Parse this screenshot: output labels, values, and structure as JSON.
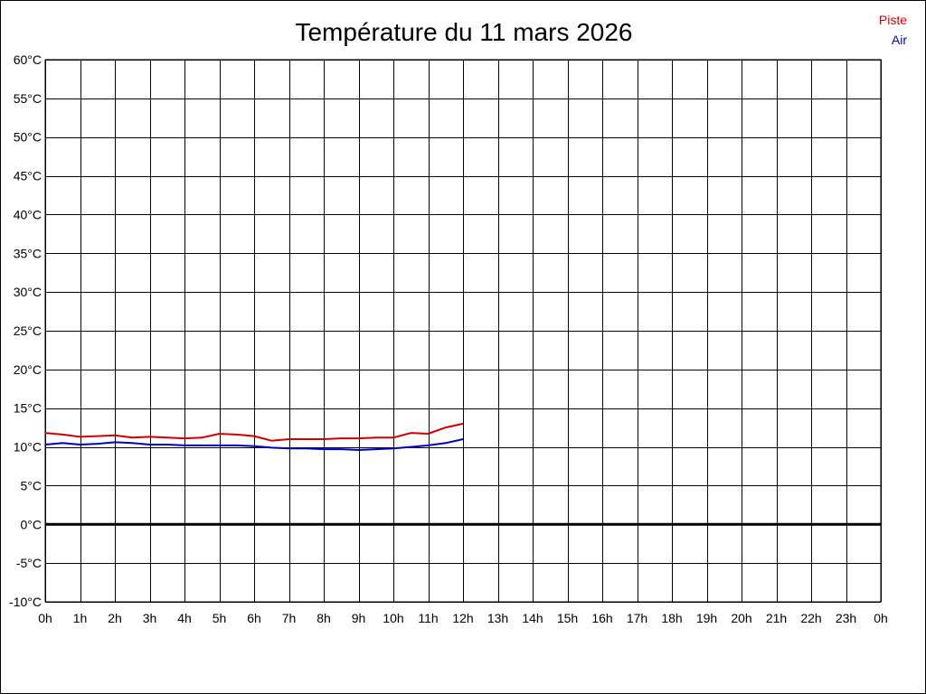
{
  "chart_data": {
    "type": "line",
    "title": "Température du 11 mars 2026",
    "xlabel": "",
    "ylabel": "",
    "ylim": [
      -10,
      60
    ],
    "y_ticks": [
      -10,
      -5,
      0,
      5,
      10,
      15,
      20,
      25,
      30,
      35,
      40,
      45,
      50,
      55,
      60
    ],
    "y_tick_labels": [
      "-10°C",
      "-5°C",
      "0°C",
      "5°C",
      "10°C",
      "15°C",
      "20°C",
      "25°C",
      "30°C",
      "35°C",
      "40°C",
      "45°C",
      "50°C",
      "55°C",
      "60°C"
    ],
    "xlim": [
      0,
      24
    ],
    "x_tick_labels": [
      "0h",
      "1h",
      "2h",
      "3h",
      "4h",
      "5h",
      "6h",
      "7h",
      "8h",
      "9h",
      "10h",
      "11h",
      "12h",
      "13h",
      "14h",
      "15h",
      "16h",
      "17h",
      "18h",
      "19h",
      "20h",
      "21h",
      "22h",
      "23h",
      "0h"
    ],
    "grid": true,
    "legend_position": "top-right",
    "zero_line": true,
    "series": [
      {
        "name": "Piste",
        "color": "#d00000",
        "x": [
          0,
          0.5,
          1,
          1.5,
          2,
          2.5,
          3,
          3.5,
          4,
          4.5,
          5,
          5.5,
          6,
          6.5,
          7,
          7.5,
          8,
          8.5,
          9,
          9.5,
          10,
          10.5,
          11,
          11.5,
          12
        ],
        "y": [
          11.8,
          11.6,
          11.3,
          11.4,
          11.5,
          11.2,
          11.3,
          11.2,
          11.1,
          11.2,
          11.7,
          11.6,
          11.4,
          10.8,
          11.0,
          11.0,
          11.0,
          11.1,
          11.1,
          11.2,
          11.2,
          11.8,
          11.7,
          12.5,
          13.0
        ]
      },
      {
        "name": "Air",
        "color": "#0000c0",
        "x": [
          0,
          0.5,
          1,
          1.5,
          2,
          2.5,
          3,
          3.5,
          4,
          4.5,
          5,
          5.5,
          6,
          6.5,
          7,
          7.5,
          8,
          8.5,
          9,
          9.5,
          10,
          10.5,
          11,
          11.5,
          12
        ],
        "y": [
          10.3,
          10.5,
          10.3,
          10.4,
          10.6,
          10.5,
          10.3,
          10.3,
          10.2,
          10.2,
          10.2,
          10.2,
          10.1,
          9.9,
          9.8,
          9.8,
          9.7,
          9.7,
          9.6,
          9.7,
          9.8,
          10.0,
          10.2,
          10.5,
          11.0
        ]
      }
    ]
  }
}
